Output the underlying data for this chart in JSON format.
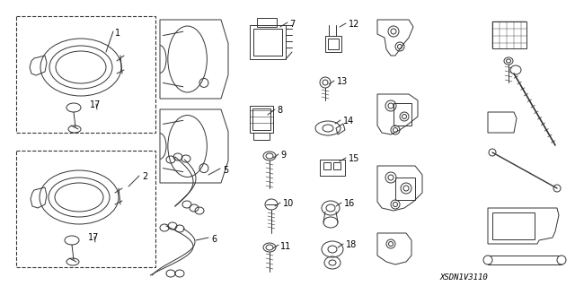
{
  "bg_color": "#ffffff",
  "part_number": "XSDN1V3110",
  "fig_width": 6.4,
  "fig_height": 3.19,
  "dpi": 100,
  "lc": "#333333",
  "lw": 0.7,
  "fs": 6.5
}
